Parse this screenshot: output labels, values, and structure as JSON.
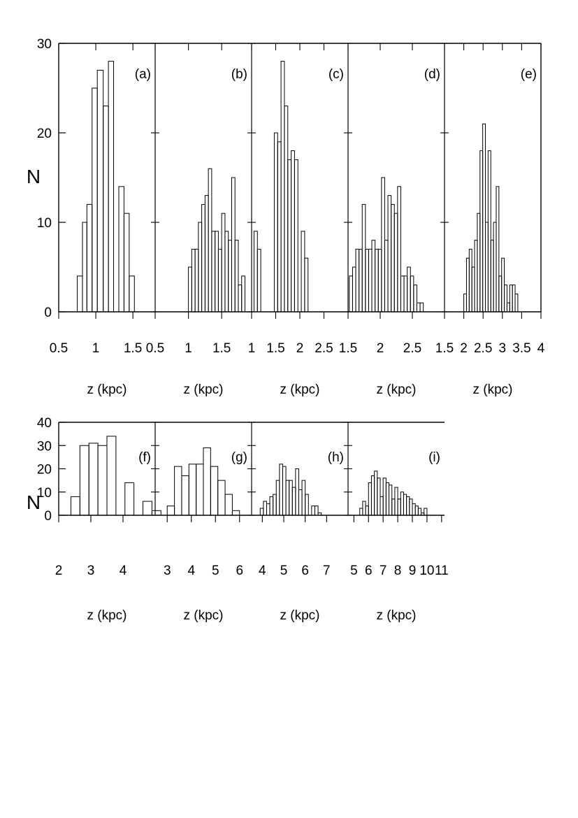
{
  "chart_data": [
    {
      "type": "bar",
      "row": "top",
      "ylabel": "N",
      "ylim": [
        0,
        30
      ],
      "yticks": [
        0,
        10,
        20,
        30
      ],
      "panels": [
        {
          "label": "(a)",
          "xlabel": "z (kpc)",
          "xlim": [
            0.5,
            1.8
          ],
          "xticks": [
            "0.5",
            "1",
            "1.5"
          ],
          "bins": [
            [
              0.75,
              0.82,
              4
            ],
            [
              0.82,
              0.88,
              10
            ],
            [
              0.88,
              0.95,
              12
            ],
            [
              0.95,
              1.02,
              25
            ],
            [
              1.02,
              1.1,
              27
            ],
            [
              1.1,
              1.17,
              23
            ],
            [
              1.17,
              1.24,
              28
            ],
            [
              1.24,
              1.31,
              0
            ],
            [
              1.31,
              1.38,
              14
            ],
            [
              1.38,
              1.45,
              11
            ],
            [
              1.45,
              1.52,
              4
            ]
          ]
        },
        {
          "label": "(b)",
          "xlabel": "z (kpc)",
          "xlim": [
            0.5,
            1.95
          ],
          "xticks": [
            "0.5",
            "1",
            "1.5"
          ],
          "bins": [
            [
              1.0,
              1.05,
              5
            ],
            [
              1.05,
              1.1,
              7
            ],
            [
              1.1,
              1.15,
              7
            ],
            [
              1.15,
              1.2,
              10
            ],
            [
              1.2,
              1.25,
              12
            ],
            [
              1.25,
              1.3,
              13
            ],
            [
              1.3,
              1.35,
              16
            ],
            [
              1.35,
              1.4,
              9
            ],
            [
              1.4,
              1.45,
              9
            ],
            [
              1.45,
              1.5,
              7
            ],
            [
              1.5,
              1.55,
              11
            ],
            [
              1.55,
              1.6,
              9
            ],
            [
              1.6,
              1.65,
              8
            ],
            [
              1.65,
              1.7,
              15
            ],
            [
              1.7,
              1.75,
              8
            ],
            [
              1.75,
              1.8,
              3
            ],
            [
              1.8,
              1.85,
              4
            ]
          ]
        },
        {
          "label": "(c)",
          "xlabel": "z (kpc)",
          "xlim": [
            1.0,
            3.0
          ],
          "xticks": [
            "1",
            "1.5",
            "2",
            "2.5"
          ],
          "bins": [
            [
              1.05,
              1.12,
              9
            ],
            [
              1.12,
              1.19,
              7
            ],
            [
              1.19,
              1.26,
              0
            ],
            [
              1.26,
              1.33,
              0
            ],
            [
              1.33,
              1.4,
              0
            ],
            [
              1.4,
              1.47,
              0
            ],
            [
              1.47,
              1.54,
              20
            ],
            [
              1.54,
              1.61,
              19
            ],
            [
              1.61,
              1.68,
              28
            ],
            [
              1.68,
              1.75,
              23
            ],
            [
              1.75,
              1.82,
              17
            ],
            [
              1.82,
              1.89,
              18
            ],
            [
              1.89,
              1.96,
              17
            ],
            [
              1.96,
              2.03,
              0
            ],
            [
              2.03,
              2.1,
              9
            ],
            [
              2.1,
              2.17,
              6
            ]
          ]
        },
        {
          "label": "(d)",
          "xlabel": "z (kpc)",
          "xlim": [
            1.5,
            3.0
          ],
          "xticks": [
            "1.5",
            "2",
            "2.5"
          ],
          "bins": [
            [
              1.52,
              1.57,
              4
            ],
            [
              1.57,
              1.62,
              5
            ],
            [
              1.62,
              1.67,
              7
            ],
            [
              1.67,
              1.72,
              7
            ],
            [
              1.72,
              1.77,
              12
            ],
            [
              1.77,
              1.82,
              7
            ],
            [
              1.82,
              1.87,
              7
            ],
            [
              1.87,
              1.92,
              8
            ],
            [
              1.92,
              1.97,
              7
            ],
            [
              1.97,
              2.02,
              7
            ],
            [
              2.02,
              2.07,
              15
            ],
            [
              2.07,
              2.12,
              8
            ],
            [
              2.12,
              2.17,
              13
            ],
            [
              2.17,
              2.22,
              12
            ],
            [
              2.22,
              2.27,
              11
            ],
            [
              2.27,
              2.32,
              14
            ],
            [
              2.32,
              2.37,
              4
            ],
            [
              2.37,
              2.42,
              4
            ],
            [
              2.42,
              2.47,
              5
            ],
            [
              2.47,
              2.52,
              4
            ],
            [
              2.52,
              2.57,
              3
            ],
            [
              2.57,
              2.62,
              1
            ],
            [
              2.62,
              2.67,
              1
            ]
          ]
        },
        {
          "label": "(e)",
          "xlabel": "z (kpc)",
          "xlim": [
            1.5,
            4.0
          ],
          "xticks": [
            "1.5",
            "2",
            "2.5",
            "3",
            "3.5",
            "4"
          ],
          "bins": [
            [
              2.0,
              2.07,
              2
            ],
            [
              2.07,
              2.14,
              6
            ],
            [
              2.14,
              2.21,
              7
            ],
            [
              2.21,
              2.28,
              5
            ],
            [
              2.28,
              2.35,
              8
            ],
            [
              2.35,
              2.42,
              11
            ],
            [
              2.42,
              2.49,
              18
            ],
            [
              2.49,
              2.56,
              21
            ],
            [
              2.56,
              2.63,
              10
            ],
            [
              2.63,
              2.7,
              18
            ],
            [
              2.7,
              2.77,
              8
            ],
            [
              2.77,
              2.84,
              10
            ],
            [
              2.84,
              2.91,
              14
            ],
            [
              2.91,
              2.98,
              4
            ],
            [
              2.98,
              3.05,
              6
            ],
            [
              3.05,
              3.12,
              3
            ],
            [
              3.12,
              3.19,
              1
            ],
            [
              3.19,
              3.26,
              3
            ],
            [
              3.26,
              3.33,
              3
            ],
            [
              3.33,
              3.4,
              2
            ]
          ]
        }
      ]
    },
    {
      "type": "bar",
      "row": "bottom",
      "ylabel": "N",
      "ylim": [
        0,
        40
      ],
      "yticks": [
        0,
        10,
        20,
        30,
        40
      ],
      "panels": [
        {
          "label": "(f)",
          "xlabel": "z (kpc)",
          "xlim": [
            2.0,
            5.0
          ],
          "xticks": [
            "2",
            "3",
            "4"
          ],
          "bins": [
            [
              2.38,
              2.66,
              8
            ],
            [
              2.66,
              2.94,
              30
            ],
            [
              2.94,
              3.22,
              31
            ],
            [
              3.22,
              3.5,
              30
            ],
            [
              3.5,
              3.78,
              34
            ],
            [
              3.78,
              4.06,
              0
            ],
            [
              4.06,
              4.34,
              14
            ],
            [
              4.34,
              4.62,
              0
            ],
            [
              4.62,
              4.9,
              6
            ],
            [
              4.9,
              5.18,
              2
            ]
          ]
        },
        {
          "label": "(g)",
          "xlabel": "z (kpc)",
          "xlim": [
            2.5,
            6.5
          ],
          "xticks": [
            "3",
            "4",
            "5",
            "6"
          ],
          "bins": [
            [
              3.0,
              3.3,
              4
            ],
            [
              3.3,
              3.6,
              21
            ],
            [
              3.6,
              3.9,
              17
            ],
            [
              3.9,
              4.2,
              22
            ],
            [
              4.2,
              4.5,
              22
            ],
            [
              4.5,
              4.8,
              29
            ],
            [
              4.8,
              5.1,
              21
            ],
            [
              5.1,
              5.4,
              15
            ],
            [
              5.4,
              5.7,
              9
            ],
            [
              5.7,
              6.0,
              2
            ]
          ]
        },
        {
          "label": "(h)",
          "xlabel": "z (kpc)",
          "xlim": [
            3.5,
            8.0
          ],
          "xticks": [
            "4",
            "5",
            "6",
            "7"
          ],
          "bins": [
            [
              3.9,
              4.05,
              3
            ],
            [
              4.05,
              4.2,
              6
            ],
            [
              4.2,
              4.35,
              5
            ],
            [
              4.35,
              4.5,
              8
            ],
            [
              4.5,
              4.65,
              9
            ],
            [
              4.65,
              4.8,
              15
            ],
            [
              4.8,
              4.95,
              22
            ],
            [
              4.95,
              5.1,
              21
            ],
            [
              5.1,
              5.25,
              15
            ],
            [
              5.25,
              5.4,
              15
            ],
            [
              5.4,
              5.55,
              12
            ],
            [
              5.55,
              5.7,
              20
            ],
            [
              5.7,
              5.85,
              11
            ],
            [
              5.85,
              6.0,
              15
            ],
            [
              6.0,
              6.15,
              9
            ],
            [
              6.15,
              6.3,
              0
            ],
            [
              6.3,
              6.45,
              4
            ],
            [
              6.45,
              6.6,
              4
            ],
            [
              6.6,
              6.75,
              1
            ]
          ]
        },
        {
          "label": "(i)",
          "xlabel": "z (kpc)",
          "xlim": [
            4.6,
            11.2
          ],
          "xticks": [
            "5",
            "6",
            "7",
            "8",
            "9",
            "10",
            "11"
          ],
          "bins": [
            [
              5.4,
              5.6,
              3
            ],
            [
              5.6,
              5.8,
              6
            ],
            [
              5.8,
              6.0,
              4
            ],
            [
              6.0,
              6.2,
              14
            ],
            [
              6.2,
              6.4,
              17
            ],
            [
              6.4,
              6.6,
              19
            ],
            [
              6.6,
              6.8,
              16
            ],
            [
              6.8,
              7.0,
              8
            ],
            [
              7.0,
              7.2,
              16
            ],
            [
              7.2,
              7.4,
              14
            ],
            [
              7.4,
              7.6,
              13
            ],
            [
              7.6,
              7.8,
              7
            ],
            [
              7.8,
              8.0,
              12
            ],
            [
              8.0,
              8.2,
              7
            ],
            [
              8.2,
              8.4,
              10
            ],
            [
              8.4,
              8.6,
              9
            ],
            [
              8.6,
              8.8,
              8
            ],
            [
              8.8,
              9.0,
              7
            ],
            [
              9.0,
              9.2,
              5
            ],
            [
              9.2,
              9.4,
              4
            ],
            [
              9.4,
              9.6,
              3
            ],
            [
              9.6,
              9.8,
              1
            ],
            [
              9.8,
              10.0,
              3
            ]
          ]
        }
      ]
    }
  ]
}
